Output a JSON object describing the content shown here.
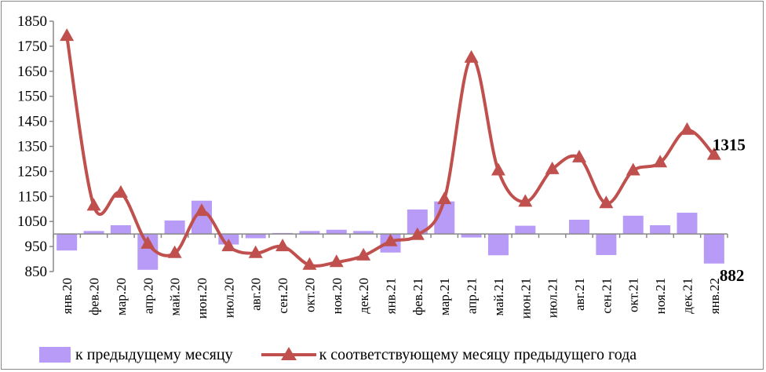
{
  "chart_data": {
    "type": "bar+line",
    "categories": [
      "янв.20",
      "фев.20",
      "мар.20",
      "апр.20",
      "май.20",
      "июн.20",
      "июл.20",
      "авг.20",
      "сен.20",
      "окт.20",
      "ноя.20",
      "дек.20",
      "янв.21",
      "фев.21",
      "мар.21",
      "апр.21",
      "май.21",
      "июн.21",
      "июл.21",
      "авг.21",
      "сен.21",
      "окт.21",
      "ноя.21",
      "дек.21",
      "янв.22"
    ],
    "yticks": [
      "850",
      "950",
      "1050",
      "1150",
      "1250",
      "1350",
      "1450",
      "1550",
      "1650",
      "1750",
      "1850"
    ],
    "ylim": [
      850,
      1850
    ],
    "bar_baseline": 1000,
    "series": [
      {
        "name": "к предыдущему месяцу",
        "type": "bar",
        "color": "#b79bf7",
        "values": [
          934,
          1012,
          1035,
          857,
          1054,
          1133,
          958,
          983,
          1004,
          1012,
          1017,
          1012,
          926,
          1098,
          1130,
          986,
          915,
          1033,
          1000,
          1057,
          916,
          1073,
          1035,
          1085,
          882
        ]
      },
      {
        "name": "к соответствующему месяцу предыдущего года",
        "type": "line",
        "color": "#c0504d",
        "values": [
          1790,
          1112,
          1164,
          960,
          923,
          1091,
          950,
          923,
          950,
          876,
          887,
          913,
          970,
          995,
          1138,
          1703,
          1253,
          1128,
          1258,
          1305,
          1122,
          1253,
          1285,
          1415,
          1315
        ]
      }
    ],
    "data_labels": {
      "line_last": "1315",
      "bar_last": "882"
    },
    "legend_position": "bottom",
    "grid": false
  }
}
